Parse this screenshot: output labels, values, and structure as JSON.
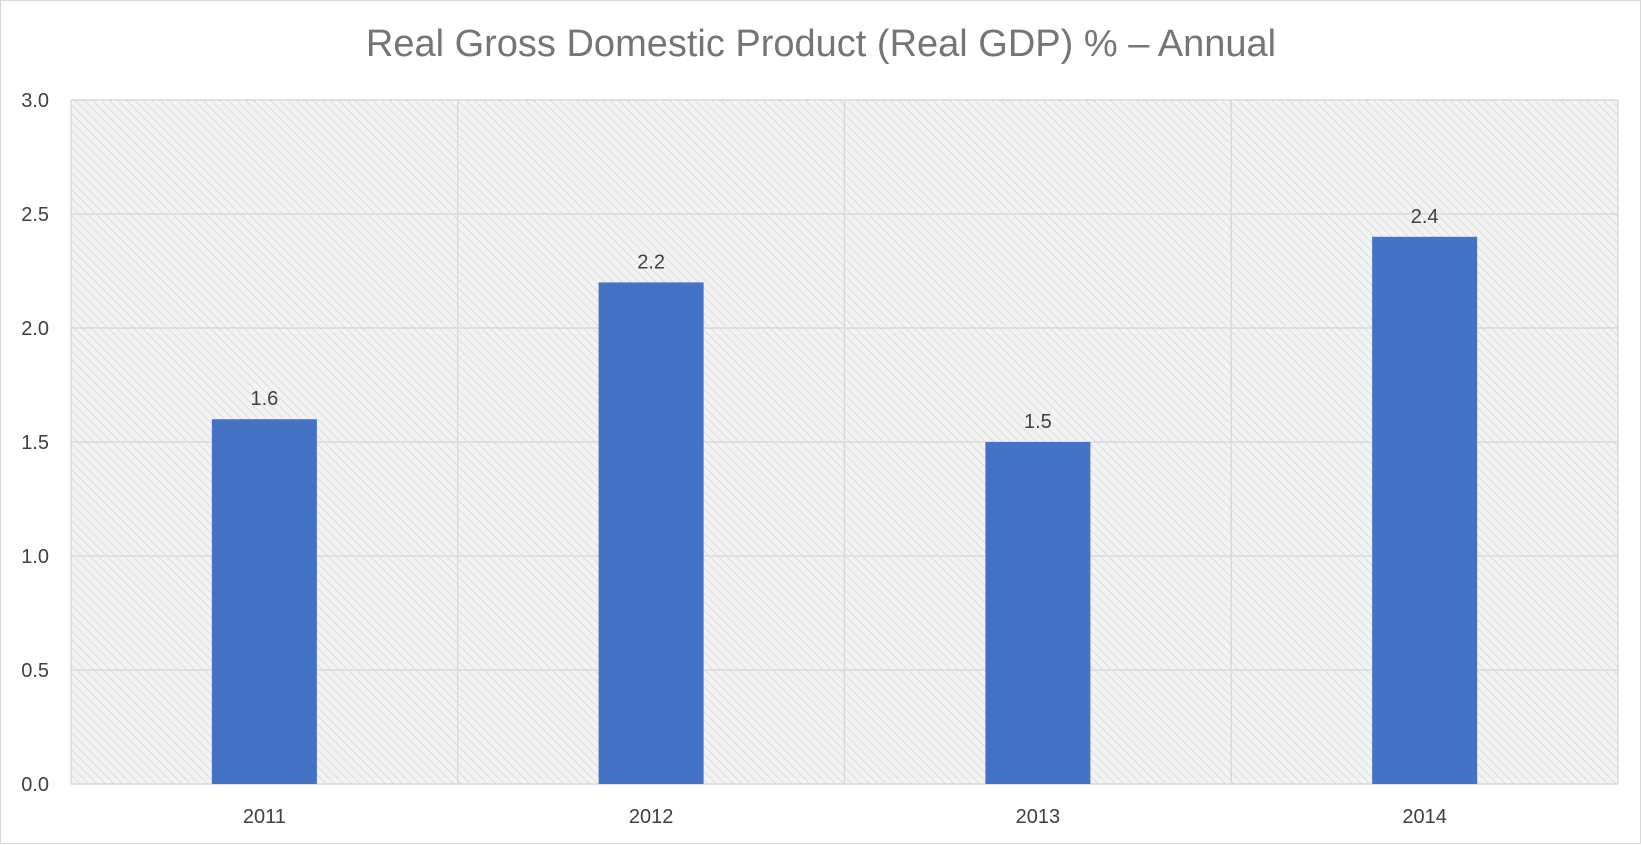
{
  "chart_data": {
    "type": "bar",
    "title": "Real Gross Domestic Product (Real GDP) % – Annual",
    "xlabel": "",
    "ylabel": "",
    "categories": [
      "2011",
      "2012",
      "2013",
      "2014"
    ],
    "values": [
      1.6,
      2.2,
      1.5,
      2.4
    ],
    "data_labels": [
      "1.6",
      "2.2",
      "1.5",
      "2.4"
    ],
    "ylim": [
      0,
      3
    ],
    "yticks": [
      0.0,
      0.5,
      1.0,
      1.5,
      2.0,
      2.5,
      3.0
    ],
    "ytick_labels": [
      "0.0",
      "0.5",
      "1.0",
      "1.5",
      "2.0",
      "2.5",
      "3.0"
    ],
    "grid": true,
    "legend": "none",
    "bar_color": "#4472c4",
    "plot_background": "hatched light gray"
  }
}
